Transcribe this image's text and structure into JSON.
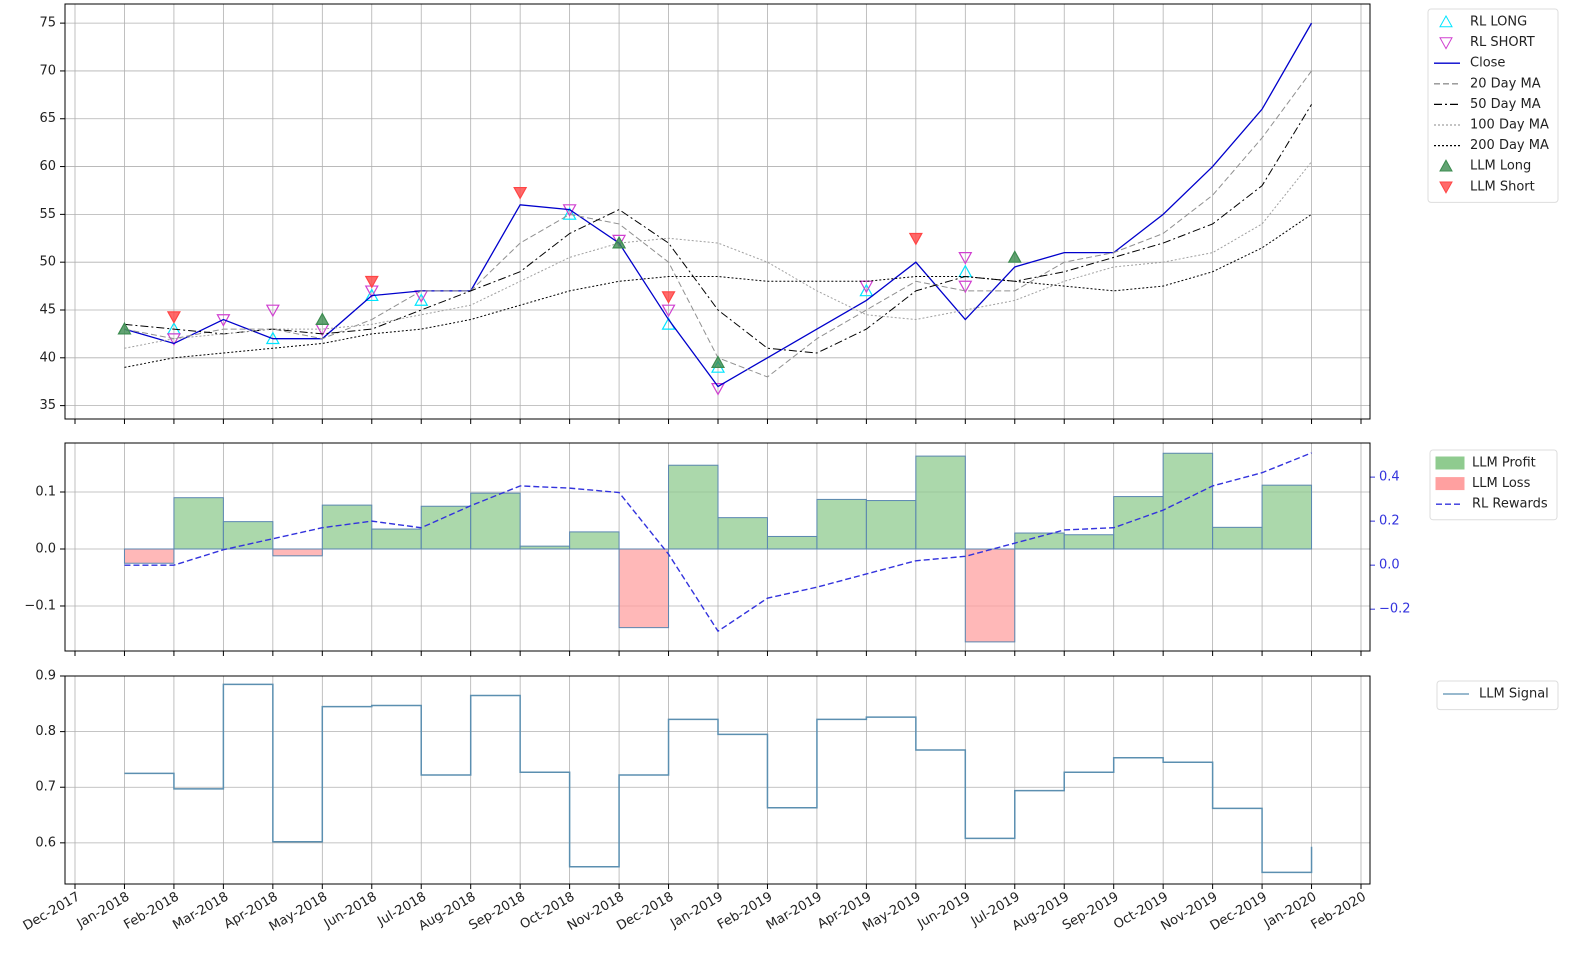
{
  "chart_data": [
    {
      "type": "line",
      "xlim": [
        "2017-12",
        "2020-02"
      ],
      "ylim": [
        33.6,
        77
      ],
      "yticks": [
        35,
        40,
        45,
        50,
        55,
        60,
        65,
        70,
        75
      ],
      "grid": true,
      "x": [
        "2018-01",
        "2018-02",
        "2018-03",
        "2018-04",
        "2018-05",
        "2018-06",
        "2018-07",
        "2018-08",
        "2018-09",
        "2018-10",
        "2018-11",
        "2018-12",
        "2019-01",
        "2019-02",
        "2019-03",
        "2019-04",
        "2019-05",
        "2019-06",
        "2019-07",
        "2019-08",
        "2019-09",
        "2019-10",
        "2019-11",
        "2019-12",
        "2020-01"
      ],
      "series": [
        {
          "name": "RL LONG",
          "marker": "triangle-up",
          "filled": false,
          "color": "#00e5ff",
          "x": [
            "2018-02",
            "2018-04",
            "2018-06",
            "2018-07",
            "2018-10",
            "2018-12",
            "2019-01",
            "2019-04",
            "2019-06"
          ],
          "values": [
            43,
            42,
            46.5,
            46,
            55,
            43.5,
            39,
            47,
            49
          ]
        },
        {
          "name": "RL SHORT",
          "marker": "triangle-down",
          "filled": false,
          "color": "#d040d0",
          "x": [
            "2018-02",
            "2018-03",
            "2018-04",
            "2018-05",
            "2018-06",
            "2018-07",
            "2018-10",
            "2018-11",
            "2018-12",
            "2019-01",
            "2019-04",
            "2019-06",
            "2019-06"
          ],
          "values": [
            42,
            44,
            45,
            43,
            47,
            46.5,
            55.5,
            52.3,
            45,
            36.8,
            47.5,
            50.5,
            47.5
          ]
        },
        {
          "name": "Close",
          "color": "#0000cc",
          "dash": "solid",
          "values": [
            43,
            41.5,
            44,
            42,
            42,
            46.5,
            47,
            47,
            56,
            55.5,
            52,
            44,
            37,
            40,
            43,
            46,
            50,
            44,
            49.5,
            51,
            51,
            55,
            60,
            66,
            75
          ]
        },
        {
          "name": "20 Day MA",
          "color": "#909090",
          "dash": "dashed",
          "values": [
            43,
            42,
            43,
            43,
            42,
            44,
            47,
            47,
            52,
            55,
            54,
            50,
            40,
            38,
            42,
            45,
            48,
            47,
            47,
            50,
            51,
            53,
            57,
            63,
            70
          ]
        },
        {
          "name": "50 Day MA",
          "color": "#000000",
          "dash": "dashdot",
          "values": [
            43.5,
            43,
            42.5,
            43,
            42.5,
            43,
            45,
            47,
            49,
            53,
            55.5,
            52,
            45,
            41,
            40.5,
            43,
            47,
            48.5,
            48,
            49,
            50.5,
            52,
            54,
            58,
            66.5
          ]
        },
        {
          "name": "100 Day MA",
          "color": "#a0a0a0",
          "dash": "dotted",
          "values": [
            41,
            42,
            42.5,
            43,
            43,
            43.5,
            44.5,
            45.5,
            48,
            50.5,
            52,
            52.5,
            52,
            50,
            47,
            44.5,
            44,
            45,
            46,
            48,
            49.5,
            50,
            51,
            54,
            60.5
          ]
        },
        {
          "name": "200 Day MA",
          "color": "#000000",
          "dash": "dotted",
          "values": [
            39,
            40,
            40.5,
            41,
            41.5,
            42.5,
            43,
            44,
            45.5,
            47,
            48,
            48.5,
            48.5,
            48,
            48,
            48,
            48.5,
            48.5,
            48,
            47.5,
            47,
            47.5,
            49,
            51.5,
            55
          ]
        },
        {
          "name": "LLM Long",
          "marker": "triangle-up",
          "filled": true,
          "color": "#3c8c50",
          "x": [
            "2018-01",
            "2018-05",
            "2018-11",
            "2019-01",
            "2019-07"
          ],
          "values": [
            43,
            44,
            52,
            39.5,
            50.5
          ]
        },
        {
          "name": "LLM Short",
          "marker": "triangle-down",
          "filled": true,
          "color": "#ff4545",
          "x": [
            "2018-02",
            "2018-06",
            "2018-09",
            "2018-12",
            "2019-05"
          ],
          "values": [
            44.3,
            48,
            57.3,
            46.4,
            52.5
          ]
        }
      ]
    },
    {
      "type": "step-area",
      "xlim": [
        "2017-12",
        "2020-02"
      ],
      "ylim": [
        -0.179,
        0.186
      ],
      "yticks": [
        {
          "value": -0.1,
          "label": "−0.1"
        },
        {
          "value": 0,
          "label": "0.0"
        },
        {
          "value": 0.1,
          "label": "0.1"
        }
      ],
      "y2lim": [
        -0.39,
        0.555
      ],
      "y2ticks": [
        {
          "value": -0.2,
          "label": "−0.2"
        },
        {
          "value": 0,
          "label": "0.0"
        },
        {
          "value": 0.2,
          "label": "0.2"
        },
        {
          "value": 0.4,
          "label": "0.4"
        }
      ],
      "grid": true,
      "categories": [
        "2018-01",
        "2018-02",
        "2018-03",
        "2018-04",
        "2018-05",
        "2018-06",
        "2018-07",
        "2018-08",
        "2018-09",
        "2018-10",
        "2018-11",
        "2018-12",
        "2019-01",
        "2019-02",
        "2019-03",
        "2019-04",
        "2019-05",
        "2019-06",
        "2019-07",
        "2019-08",
        "2019-09",
        "2019-10",
        "2019-11",
        "2019-12"
      ],
      "series": [
        {
          "name": "LLM Profit",
          "color": "#8fcb8f",
          "values": [
            null,
            0.09,
            0.048,
            null,
            0.077,
            0.035,
            0.075,
            0.098,
            0.005,
            0.03,
            null,
            0.147,
            0.055,
            0.022,
            0.087,
            0.085,
            0.163,
            null,
            0.028,
            0.025,
            0.092,
            0.168,
            0.038,
            0.112
          ]
        },
        {
          "name": "LLM Loss",
          "color": "#ffa0a0",
          "values": [
            -0.025,
            null,
            null,
            -0.012,
            null,
            null,
            null,
            null,
            null,
            null,
            -0.138,
            null,
            null,
            null,
            null,
            null,
            null,
            -0.163,
            null,
            null,
            null,
            null,
            null,
            null
          ]
        },
        {
          "name": "RL Rewards",
          "color": "#3333dd",
          "axis": "y2",
          "dash": "dashed",
          "x": [
            "2018-01",
            "2018-02",
            "2018-03",
            "2018-04",
            "2018-05",
            "2018-06",
            "2018-07",
            "2018-08",
            "2018-09",
            "2018-10",
            "2018-11",
            "2018-12",
            "2019-01",
            "2019-02",
            "2019-03",
            "2019-04",
            "2019-05",
            "2019-06",
            "2019-07",
            "2019-08",
            "2019-09",
            "2019-10",
            "2019-11",
            "2019-12",
            "2020-01"
          ],
          "values": [
            0.0,
            0.0,
            0.07,
            0.12,
            0.17,
            0.2,
            0.17,
            0.27,
            0.36,
            0.35,
            0.33,
            0.05,
            -0.3,
            -0.15,
            -0.1,
            -0.04,
            0.02,
            0.04,
            0.1,
            0.16,
            0.17,
            0.25,
            0.36,
            0.42,
            0.51
          ]
        }
      ]
    },
    {
      "type": "step",
      "xlim": [
        "2017-12",
        "2020-02"
      ],
      "ylim": [
        0.526,
        0.9
      ],
      "yticks": [
        0.6,
        0.7,
        0.8,
        0.9
      ],
      "grid": true,
      "xticks": [
        {
          "value": "2017-12",
          "label": "Dec-2017"
        },
        {
          "value": "2018-01",
          "label": "Jan-2018"
        },
        {
          "value": "2018-02",
          "label": "Feb-2018"
        },
        {
          "value": "2018-03",
          "label": "Mar-2018"
        },
        {
          "value": "2018-04",
          "label": "Apr-2018"
        },
        {
          "value": "2018-05",
          "label": "May-2018"
        },
        {
          "value": "2018-06",
          "label": "Jun-2018"
        },
        {
          "value": "2018-07",
          "label": "Jul-2018"
        },
        {
          "value": "2018-08",
          "label": "Aug-2018"
        },
        {
          "value": "2018-09",
          "label": "Sep-2018"
        },
        {
          "value": "2018-10",
          "label": "Oct-2018"
        },
        {
          "value": "2018-11",
          "label": "Nov-2018"
        },
        {
          "value": "2018-12",
          "label": "Dec-2018"
        },
        {
          "value": "2019-01",
          "label": "Jan-2019"
        },
        {
          "value": "2019-02",
          "label": "Feb-2019"
        },
        {
          "value": "2019-03",
          "label": "Mar-2019"
        },
        {
          "value": "2019-04",
          "label": "Apr-2019"
        },
        {
          "value": "2019-05",
          "label": "May-2019"
        },
        {
          "value": "2019-06",
          "label": "Jun-2019"
        },
        {
          "value": "2019-07",
          "label": "Jul-2019"
        },
        {
          "value": "2019-08",
          "label": "Aug-2019"
        },
        {
          "value": "2019-09",
          "label": "Sep-2019"
        },
        {
          "value": "2019-10",
          "label": "Oct-2019"
        },
        {
          "value": "2019-11",
          "label": "Nov-2019"
        },
        {
          "value": "2019-12",
          "label": "Dec-2019"
        },
        {
          "value": "2020-01",
          "label": "Jan-2020"
        },
        {
          "value": "2020-02",
          "label": "Feb-2020"
        }
      ],
      "x": [
        "2018-01",
        "2018-02",
        "2018-03",
        "2018-04",
        "2018-05",
        "2018-06",
        "2018-07",
        "2018-08",
        "2018-09",
        "2018-10",
        "2018-11",
        "2018-12",
        "2019-01",
        "2019-02",
        "2019-03",
        "2019-04",
        "2019-05",
        "2019-06",
        "2019-07",
        "2019-08",
        "2019-09",
        "2019-10",
        "2019-11",
        "2019-12",
        "2020-01"
      ],
      "series": [
        {
          "name": "LLM Signal",
          "color": "#5b8fb0",
          "values": [
            0.725,
            0.697,
            0.885,
            0.602,
            0.845,
            0.847,
            0.722,
            0.865,
            0.727,
            0.557,
            0.722,
            0.822,
            0.795,
            0.663,
            0.822,
            0.826,
            0.767,
            0.608,
            0.694,
            0.727,
            0.753,
            0.745,
            0.662,
            0.547,
            0.593
          ]
        }
      ]
    }
  ]
}
